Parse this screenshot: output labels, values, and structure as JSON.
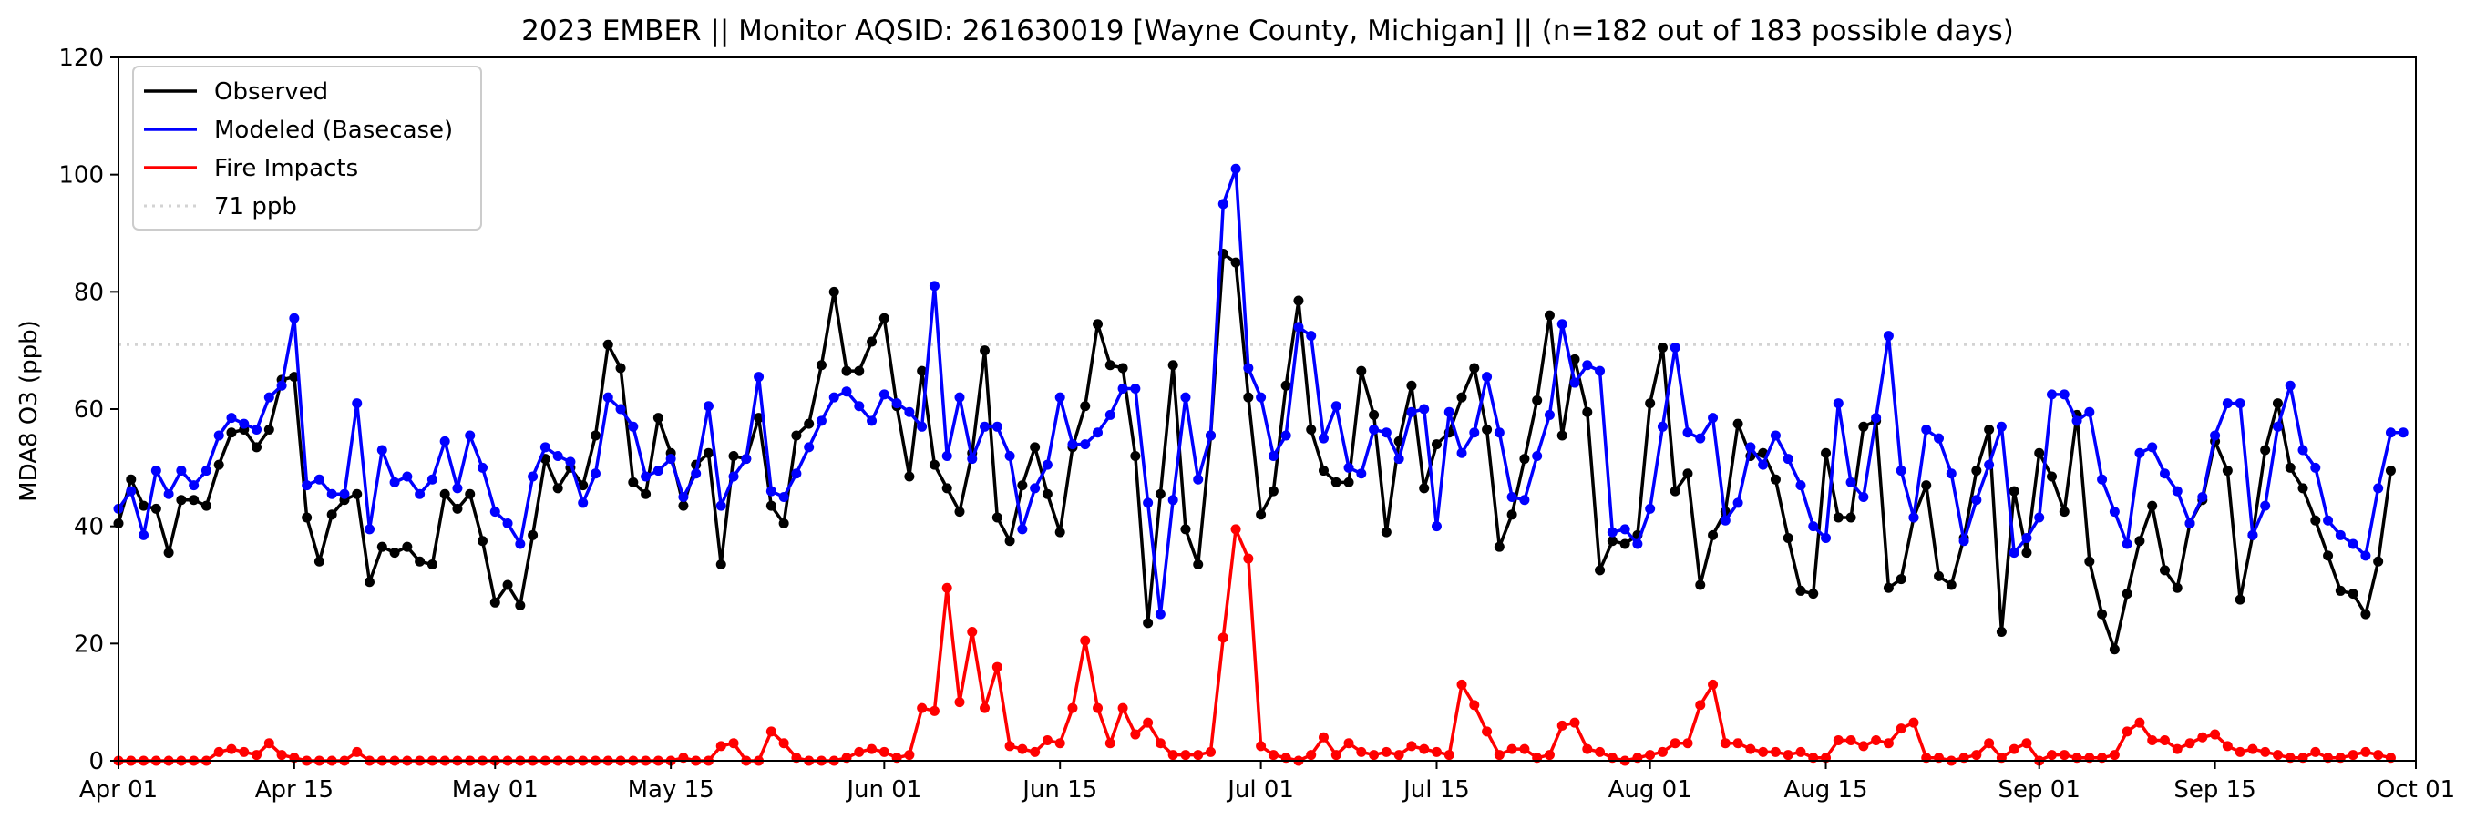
{
  "chart_data": {
    "type": "line",
    "title": "2023 EMBER || Monitor AQSID: 261630019 [Wayne County, Michigan] || (n=182 out of 183 possible days)",
    "xlabel": "",
    "ylabel": "MDA8 O3 (ppb)",
    "x_start": "2023-04-01",
    "x_end": "2023-10-01",
    "xlim": [
      "2023-04-01",
      "2023-10-01"
    ],
    "ylim": [
      0,
      120
    ],
    "x_ticks": [
      "Apr 01",
      "Apr 15",
      "May 01",
      "May 15",
      "Jun 01",
      "Jun 15",
      "Jul 01",
      "Jul 15",
      "Aug 01",
      "Aug 15",
      "Sep 01",
      "Sep 15",
      "Oct 01"
    ],
    "y_ticks": [
      "0",
      "20",
      "40",
      "60",
      "80",
      "100",
      "120"
    ],
    "grid": false,
    "legend_position": "top-left",
    "reference_line": {
      "name": "71 ppb",
      "value": 71,
      "color": "#d3d3d3"
    },
    "series": [
      {
        "name": "Observed",
        "color": "#000000",
        "values": [
          40.5,
          48,
          43.5,
          43,
          35.5,
          44.5,
          44.5,
          43.5,
          50.5,
          56,
          56.5,
          53.5,
          56.5,
          65,
          65.5,
          41.5,
          34,
          42,
          44.5,
          45.5,
          30.5,
          36.5,
          35.5,
          36.5,
          34,
          33.5,
          45.5,
          43,
          45.5,
          37.5,
          27,
          30,
          26.5,
          38.5,
          51.5,
          46.5,
          50,
          47,
          55.5,
          71,
          67,
          47.5,
          45.5,
          58.5,
          52.5,
          43.5,
          50.5,
          52.5,
          33.5,
          52,
          51.5,
          58.5,
          43.5,
          40.5,
          55.5,
          57.5,
          67.5,
          80,
          66.5,
          66.5,
          71.5,
          75.5,
          60.5,
          48.5,
          66.5,
          50.5,
          46.5,
          42.5,
          52.5,
          70,
          41.5,
          37.5,
          47,
          53.5,
          45.5,
          39,
          53.5,
          60.5,
          74.5,
          67.5,
          67,
          52,
          23.5,
          45.5,
          67.5,
          39.5,
          33.5,
          55.5,
          86.5,
          85,
          62,
          42,
          46,
          64,
          78.5,
          56.5,
          49.5,
          47.5,
          47.5,
          66.5,
          59,
          39,
          54.5,
          64,
          46.5,
          54,
          56,
          62,
          67,
          56.5,
          36.5,
          42,
          51.5,
          61.5,
          76,
          55.5,
          68.5,
          59.5,
          32.5,
          37.5,
          37,
          38.5,
          61,
          70.5,
          46,
          49,
          30,
          38.5,
          42.5,
          57.5,
          52,
          52.5,
          48,
          38,
          29,
          28.5,
          52.5,
          41.5,
          41.5,
          57,
          58,
          29.5,
          31,
          41.5,
          47,
          31.5,
          30,
          38,
          49.5,
          56.5,
          22,
          46,
          35.5,
          52.5,
          48.5,
          42.5,
          59,
          34,
          25,
          19,
          28.5,
          37.5,
          43.5,
          32.5,
          29.5,
          40.5,
          44.5,
          54.5,
          49.5,
          27.5,
          38.5,
          53,
          61,
          50,
          46.5,
          41,
          35,
          29,
          28.5,
          25,
          34,
          49.5
        ]
      },
      {
        "name": "Modeled (Basecase)",
        "color": "#0000ff",
        "values": [
          43,
          46,
          38.5,
          49.5,
          45.5,
          49.5,
          47,
          49.5,
          55.5,
          58.5,
          57.5,
          56.5,
          62,
          64,
          75.5,
          47,
          48,
          45.5,
          45.5,
          61,
          39.5,
          53,
          47.5,
          48.5,
          45.5,
          48,
          54.5,
          46.5,
          55.5,
          50,
          42.5,
          40.5,
          37,
          48.5,
          53.5,
          52,
          51,
          44,
          49,
          62,
          60,
          57,
          48.5,
          49.5,
          51.5,
          45,
          49,
          60.5,
          43.5,
          48.5,
          51.5,
          65.5,
          46,
          45,
          49,
          53.5,
          58,
          62,
          63,
          60.5,
          58,
          62.5,
          61,
          59.5,
          57,
          81,
          52,
          62,
          51.5,
          57,
          57,
          52,
          39.5,
          46.5,
          50.5,
          62,
          54,
          54,
          56,
          59,
          63.5,
          63.5,
          44,
          25,
          44.5,
          62,
          48,
          55.5,
          95,
          101,
          67,
          62,
          52,
          55.5,
          74,
          72.5,
          55,
          60.5,
          50,
          49,
          56.5,
          56,
          51.5,
          59.5,
          60,
          40,
          59.5,
          52.5,
          56,
          65.5,
          56,
          45,
          44.5,
          52,
          59,
          74.5,
          64.5,
          67.5,
          66.5,
          39,
          39.5,
          37,
          43,
          57,
          70.5,
          56,
          55,
          58.5,
          41,
          44,
          53.5,
          50.5,
          55.5,
          51.5,
          47,
          40,
          38,
          61,
          47.5,
          45,
          58.5,
          72.5,
          49.5,
          41.5,
          56.5,
          55,
          49,
          37.5,
          44.5,
          50.5,
          57,
          35.5,
          38,
          41.5,
          62.5,
          62.5,
          58,
          59.5,
          48,
          42.5,
          37,
          52.5,
          53.5,
          49,
          46,
          40.5,
          45,
          55.5,
          61,
          61,
          38.5,
          43.5,
          57,
          64,
          53,
          50,
          41,
          38.5,
          37,
          35,
          46.5,
          56,
          56
        ]
      },
      {
        "name": "Fire Impacts",
        "color": "#ff0000",
        "values": [
          0,
          0,
          0,
          0,
          0,
          0,
          0,
          0,
          1.5,
          2,
          1.5,
          1,
          3,
          1,
          0.5,
          0,
          0,
          0,
          0,
          1.5,
          0,
          0,
          0,
          0,
          0,
          0,
          0,
          0,
          0,
          0,
          0,
          0,
          0,
          0,
          0,
          0,
          0,
          0,
          0,
          0,
          0,
          0,
          0,
          0,
          0,
          0.5,
          0,
          0,
          2.5,
          3,
          0,
          0,
          5,
          3,
          0.5,
          0,
          0,
          0,
          0.5,
          1.5,
          2,
          1.5,
          0.5,
          1,
          9,
          8.5,
          29.5,
          10,
          22,
          9,
          16,
          2.5,
          2,
          1.5,
          3.5,
          3,
          9,
          20.5,
          9,
          3,
          9,
          4.5,
          6.5,
          3,
          1,
          1,
          1,
          1.5,
          21,
          39.5,
          34.5,
          2.5,
          1,
          0.5,
          0,
          1,
          4,
          1,
          3,
          1.5,
          1,
          1.5,
          1,
          2.5,
          2,
          1.5,
          1,
          13,
          9.5,
          5,
          1,
          2,
          2,
          0.5,
          1,
          6,
          6.5,
          2,
          1.5,
          0.5,
          0,
          0.5,
          1,
          1.5,
          3,
          3,
          9.5,
          13,
          3,
          3,
          2,
          1.5,
          1.5,
          1,
          1.5,
          0.5,
          0.5,
          3.5,
          3.5,
          2.5,
          3.5,
          3,
          5.5,
          6.5,
          0.5,
          0.5,
          0,
          0.5,
          1,
          3,
          0.5,
          2,
          3,
          0,
          1,
          1,
          0.5,
          0.5,
          0.5,
          1,
          5,
          6.5,
          3.5,
          3.5,
          2,
          3,
          4,
          4.5,
          2.5,
          1.5,
          2,
          1.5,
          1,
          0.5,
          0.5,
          1.5,
          0.5,
          0.5,
          1,
          1.5,
          1,
          0.5
        ]
      }
    ]
  }
}
